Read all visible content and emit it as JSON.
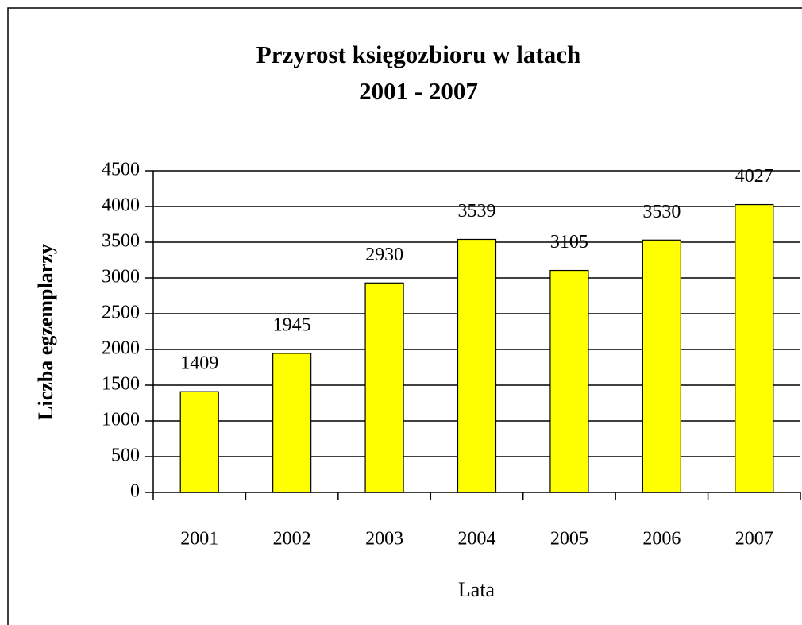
{
  "chart_data": {
    "type": "bar",
    "title": [
      "Przyrost księgozbioru w latach",
      "2001 - 2007"
    ],
    "x_label": "Lata",
    "y_label": "Liczba egzemplarzy",
    "categories": [
      "2001",
      "2002",
      "2003",
      "2004",
      "2005",
      "2006",
      "2007"
    ],
    "values": [
      1409,
      1945,
      2930,
      3539,
      3105,
      3530,
      4027
    ],
    "color": "#ffff00",
    "ylim": [
      0,
      4500
    ],
    "yticks": [
      0,
      500,
      1000,
      1500,
      2000,
      2500,
      3000,
      3500,
      4000,
      4500
    ],
    "grid": true
  }
}
